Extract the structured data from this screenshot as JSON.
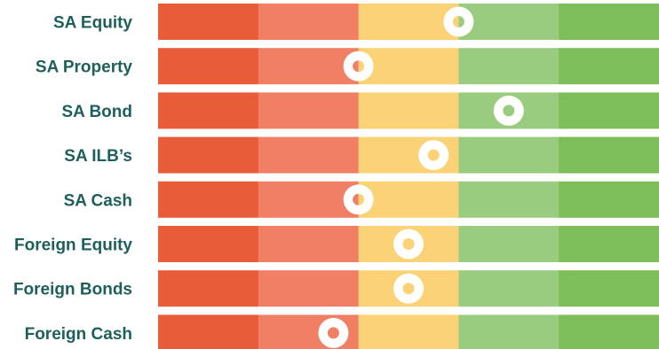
{
  "chart_data": {
    "type": "heatmap",
    "title": "",
    "scale_segments": 5,
    "segment_colors": [
      "#e95c3a",
      "#f07f63",
      "#fcd277",
      "#9acc7f",
      "#7dbd5a"
    ],
    "categories": [
      "SA Equity",
      "SA Property",
      "SA Bond",
      "SA ILB’s",
      "SA Cash",
      "Foreign Equity",
      "Foreign Bonds",
      "Foreign Cash"
    ],
    "values": [
      3.0,
      2.0,
      3.5,
      2.75,
      2.0,
      2.5,
      2.5,
      1.75
    ],
    "xlim": [
      0,
      5
    ]
  },
  "colors": {
    "label": "#1f5f5b",
    "marker_ring": "#ffffff"
  }
}
